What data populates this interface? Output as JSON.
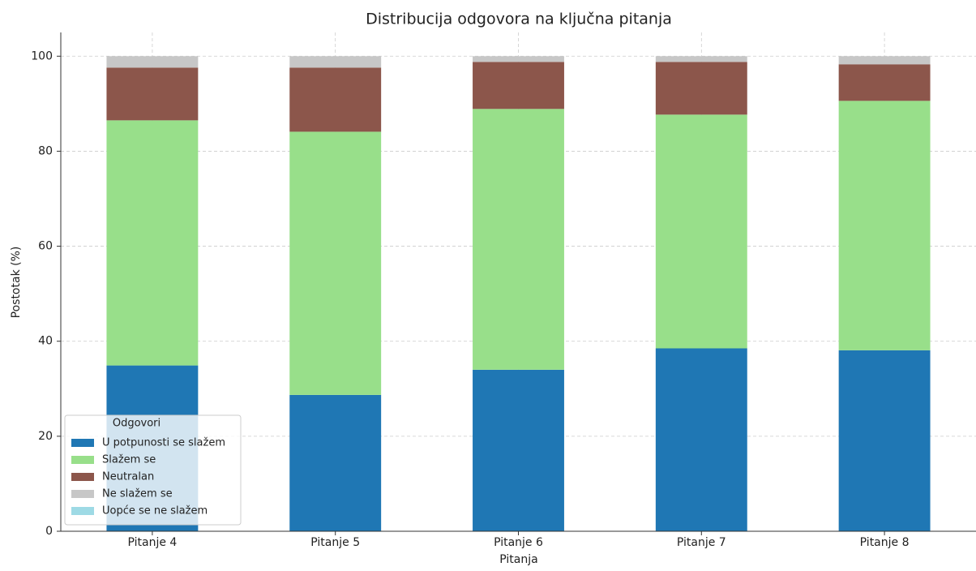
{
  "chart_data": {
    "type": "stacked_bar",
    "title": "Distribucija odgovora na ključna pitanja",
    "xlabel": "Pitanja",
    "ylabel": "Postotak (%)",
    "categories": [
      "Pitanje 4",
      "Pitanje 5",
      "Pitanje 6",
      "Pitanje 7",
      "Pitanje 8"
    ],
    "series": [
      {
        "name": "U potpunosti se slažem",
        "color": "#1f77b4",
        "values": [
          34.9,
          28.7,
          34.0,
          38.5,
          38.1
        ]
      },
      {
        "name": "Slažem se",
        "color": "#98df8a",
        "values": [
          51.6,
          55.4,
          54.9,
          49.2,
          52.5
        ]
      },
      {
        "name": "Neutralan",
        "color": "#8c564b",
        "values": [
          11.1,
          13.5,
          9.9,
          11.1,
          7.7
        ]
      },
      {
        "name": "Ne slažem se",
        "color": "#c7c7c7",
        "values": [
          2.4,
          2.4,
          1.2,
          1.2,
          1.7
        ]
      },
      {
        "name": "Uopće se ne slažem",
        "color": "#9edae5",
        "values": [
          0,
          0,
          0,
          0,
          0
        ]
      }
    ],
    "legend_title": "Odgovori",
    "legend": "lower left",
    "ylim": [
      0,
      105
    ],
    "yticks": [
      0,
      20,
      40,
      60,
      80,
      100
    ],
    "grid": true
  }
}
